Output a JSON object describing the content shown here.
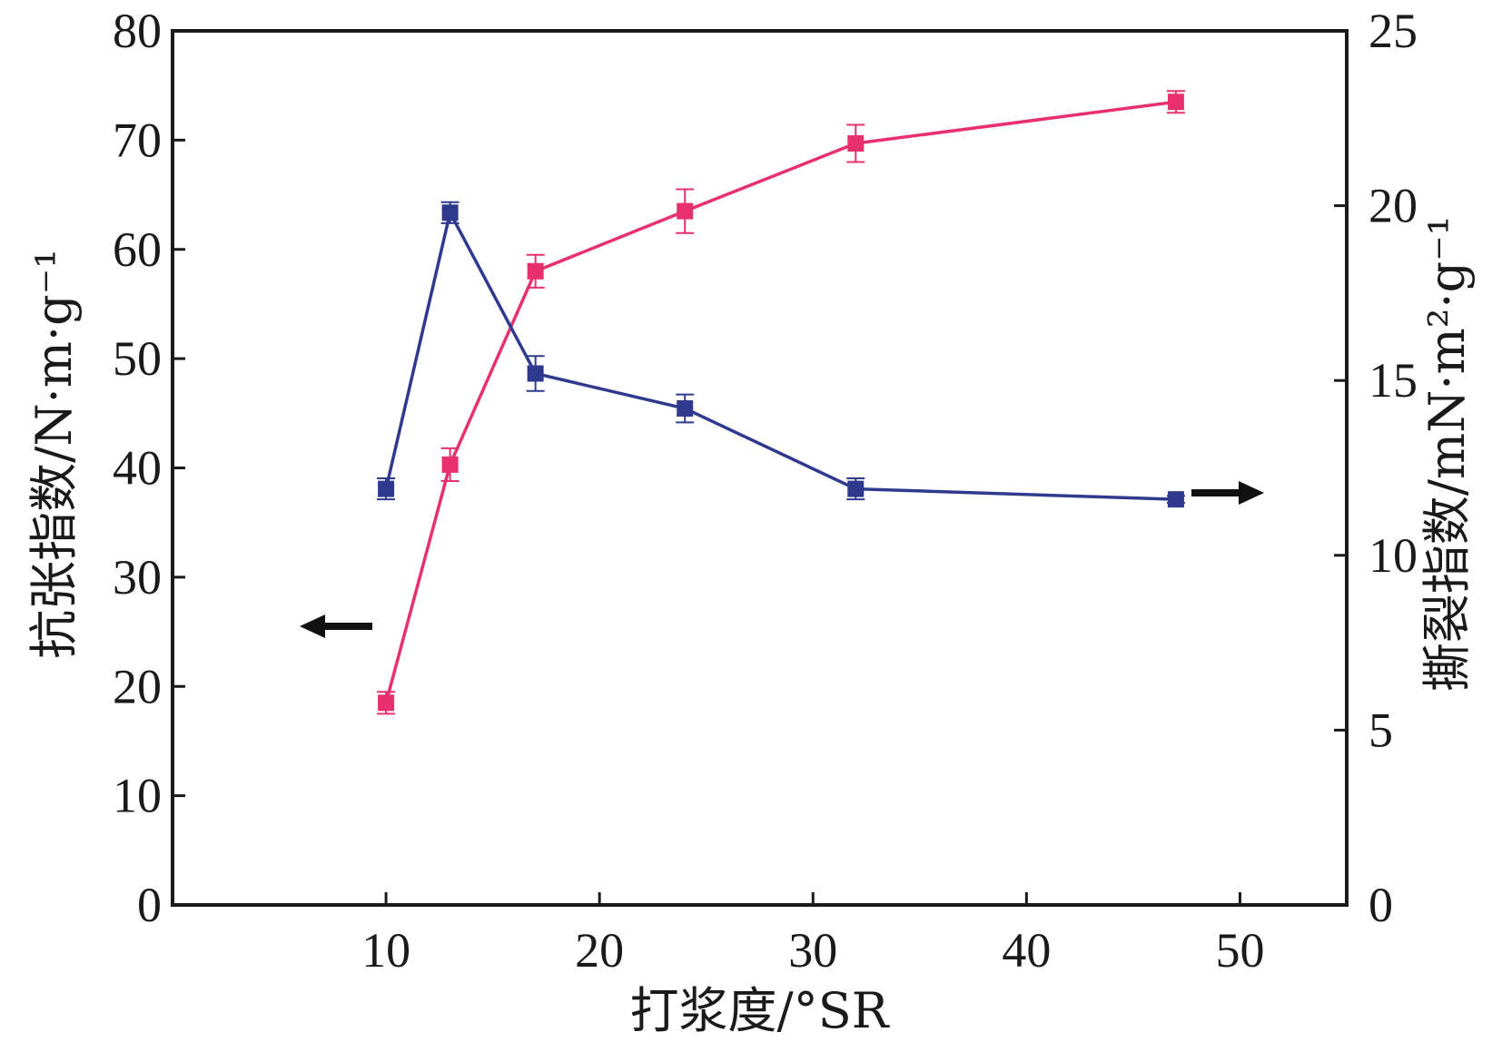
{
  "chart_data": {
    "type": "line",
    "title": "",
    "xlabel": "打浆度/°SR",
    "ylabel_left": "抗张指数/N·m·g⁻¹",
    "ylabel_right": "撕裂指数/mN·m²·g⁻¹",
    "xlim": [
      0,
      55
    ],
    "ylim_left": [
      0,
      80
    ],
    "ylim_right": [
      0,
      25
    ],
    "x_ticks": [
      "10",
      "20",
      "30",
      "40",
      "50"
    ],
    "x_tick_values": [
      10,
      20,
      30,
      40,
      50
    ],
    "y_left_ticks": [
      "0",
      "10",
      "20",
      "30",
      "40",
      "50",
      "60",
      "70",
      "80"
    ],
    "y_left_tick_values": [
      0,
      10,
      20,
      30,
      40,
      50,
      60,
      70,
      80
    ],
    "y_right_ticks": [
      "0",
      "5",
      "10",
      "15",
      "20",
      "25"
    ],
    "y_right_tick_values": [
      0,
      5,
      10,
      15,
      20,
      25
    ],
    "grid": false,
    "series": [
      {
        "axis": "left",
        "color": "#e8306f",
        "marker": "square",
        "x": [
          10,
          13,
          17,
          24,
          32,
          47
        ],
        "y": [
          18.5,
          40.3,
          58.0,
          63.5,
          69.7,
          73.5
        ],
        "error": [
          1.0,
          1.5,
          1.5,
          2.0,
          1.7,
          1.0
        ]
      },
      {
        "axis": "right",
        "color": "#2f3a8f",
        "marker": "square",
        "x": [
          10,
          13,
          17,
          24,
          32,
          47
        ],
        "y": [
          11.9,
          19.8,
          15.2,
          14.2,
          11.9,
          11.6
        ],
        "error": [
          0.3,
          0.3,
          0.5,
          0.4,
          0.3,
          0.1
        ]
      }
    ],
    "annotations": [
      {
        "type": "arrow",
        "direction": "left",
        "meaning": "left-axis series indicator"
      },
      {
        "type": "arrow",
        "direction": "right",
        "meaning": "right-axis series indicator"
      }
    ]
  }
}
